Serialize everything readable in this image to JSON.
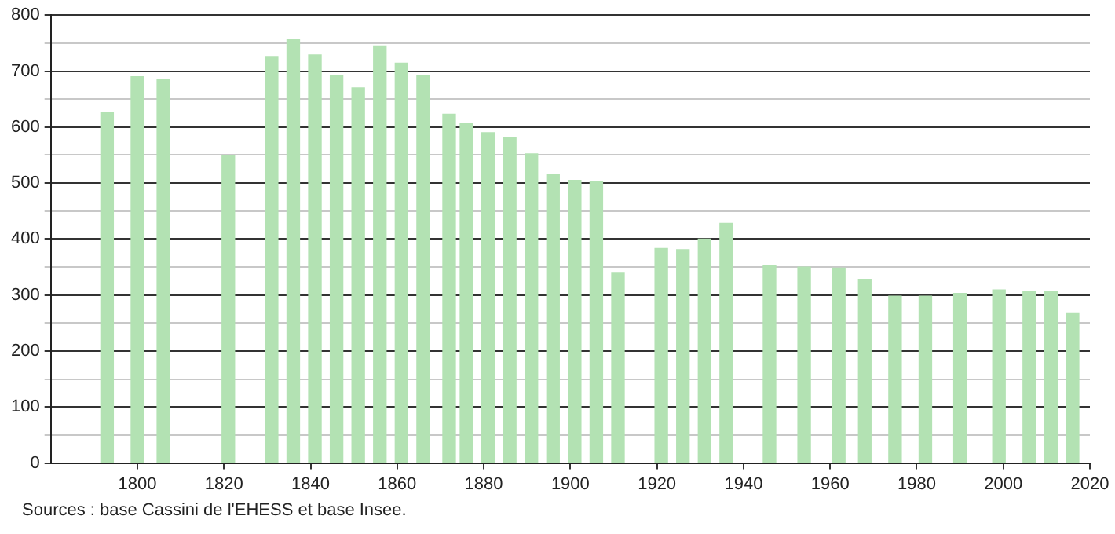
{
  "chart_data": {
    "type": "bar",
    "x": [
      1793,
      1800,
      1806,
      1821,
      1831,
      1836,
      1841,
      1846,
      1851,
      1856,
      1861,
      1866,
      1872,
      1876,
      1881,
      1886,
      1891,
      1896,
      1901,
      1906,
      1911,
      1921,
      1926,
      1931,
      1936,
      1946,
      1954,
      1962,
      1968,
      1975,
      1982,
      1990,
      1999,
      2006,
      2011,
      2016
    ],
    "values": [
      627,
      690,
      685,
      549,
      726,
      756,
      729,
      692,
      670,
      745,
      714,
      692,
      623,
      607,
      590,
      582,
      552,
      516,
      505,
      502,
      339,
      383,
      381,
      400,
      428,
      353,
      350,
      348,
      328,
      298,
      298,
      303,
      309,
      306,
      306,
      268
    ],
    "color": "#b3e2b3",
    "xlim": [
      1780,
      2020
    ],
    "xticks": [
      1800,
      1820,
      1840,
      1860,
      1880,
      1900,
      1920,
      1940,
      1960,
      1980,
      2000,
      2020
    ],
    "ylim": [
      0,
      800
    ],
    "yticks": [
      0,
      {
        "value": 50,
        "label": null
      },
      100,
      {
        "value": 150,
        "label": null
      },
      200,
      {
        "value": 250,
        "label": null
      },
      300,
      {
        "value": 350,
        "label": null
      },
      400,
      {
        "value": 450,
        "label": null
      },
      500,
      {
        "value": 550,
        "label": null
      },
      600,
      {
        "value": 650,
        "label": null
      },
      700,
      {
        "value": 750,
        "label": null
      },
      800
    ],
    "grid": "y",
    "annotations": [
      "Sources : base Cassini de l'EHESS et base Insee."
    ]
  }
}
